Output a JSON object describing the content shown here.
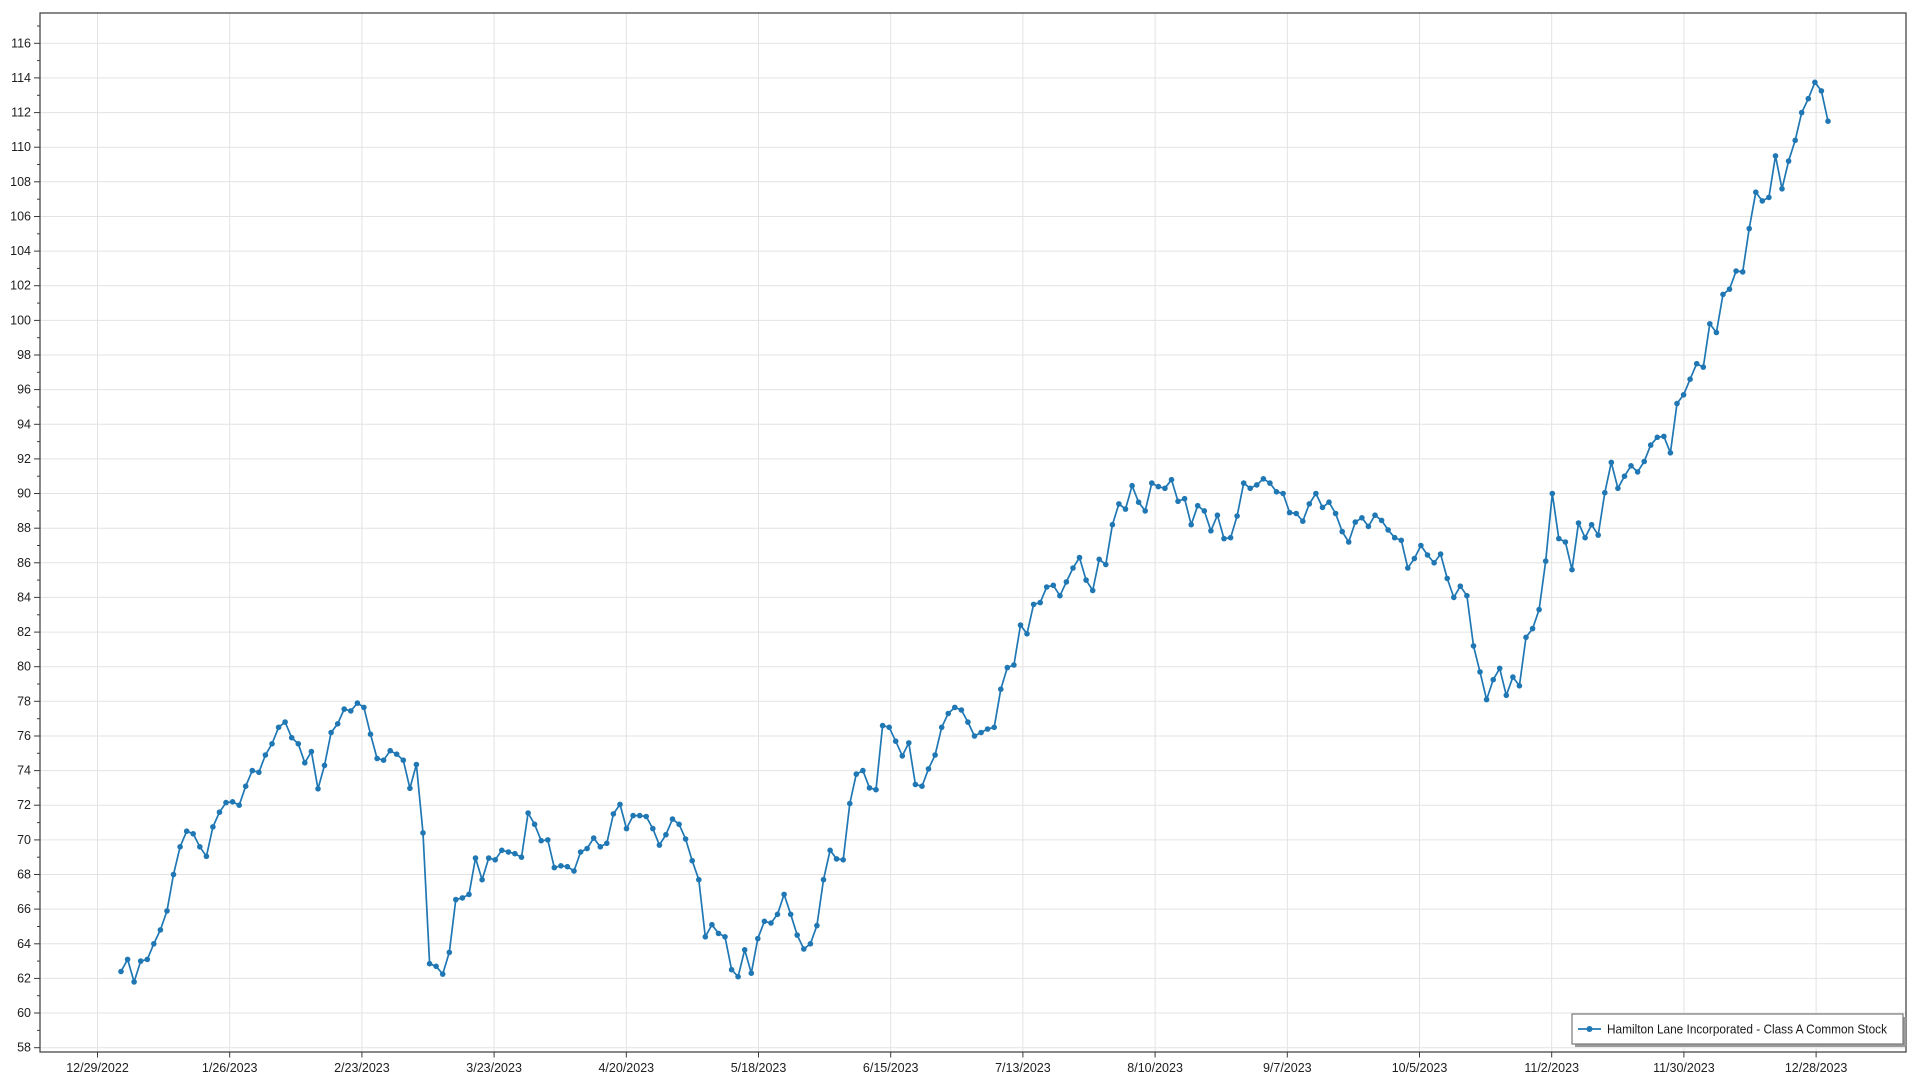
{
  "chart_data": {
    "type": "line",
    "title": "",
    "legend": {
      "position": "bottom-right",
      "label": "Hamilton Lane Incorporated - Class A Common Stock"
    },
    "x_tick_labels": [
      "12/29/2022",
      "1/26/2023",
      "2/23/2023",
      "3/23/2023",
      "4/20/2023",
      "5/18/2023",
      "6/15/2023",
      "7/13/2023",
      "8/10/2023",
      "9/7/2023",
      "10/5/2023",
      "11/2/2023",
      "11/30/2023",
      "12/28/2023"
    ],
    "y_axis": {
      "tick_min": 58,
      "tick_max": 116,
      "tick_step": 2,
      "minor_step": 1,
      "range_min": 57.75,
      "range_max": 117.75
    },
    "grid": {
      "show_x": true,
      "show_y": true,
      "color": "#e3e3e3"
    },
    "colors": {
      "axis": "#3a3a3a",
      "text": "#202020",
      "background": "#ffffff",
      "legend_border": "#7a7a7a",
      "legend_shadow": "#9a9a9a"
    },
    "series": [
      {
        "name": "Hamilton Lane Incorporated - Class A Common Stock",
        "color": "#1f77b4",
        "marker": "circle",
        "values": [
          62.4,
          63.1,
          61.8,
          63.0,
          63.1,
          64.0,
          64.8,
          65.9,
          68.0,
          69.6,
          70.5,
          70.35,
          69.6,
          69.05,
          70.75,
          71.6,
          72.15,
          72.2,
          72.0,
          73.1,
          74.0,
          73.9,
          74.9,
          75.55,
          76.5,
          76.8,
          75.9,
          75.55,
          74.45,
          75.1,
          72.95,
          74.3,
          76.2,
          76.7,
          77.55,
          77.45,
          77.9,
          77.65,
          76.1,
          74.7,
          74.6,
          75.15,
          74.95,
          74.6,
          72.98,
          74.35,
          70.4,
          62.85,
          62.7,
          62.25,
          63.5,
          66.55,
          66.65,
          66.85,
          68.95,
          67.7,
          68.95,
          68.85,
          69.4,
          69.3,
          69.2,
          69.0,
          71.55,
          70.9,
          69.95,
          70.0,
          68.4,
          68.5,
          68.45,
          68.2,
          69.3,
          69.5,
          70.1,
          69.6,
          69.8,
          71.5,
          72.05,
          70.65,
          71.4,
          71.4,
          71.35,
          70.65,
          69.7,
          70.3,
          71.2,
          70.9,
          70.05,
          68.8,
          67.7,
          64.4,
          65.1,
          64.6,
          64.4,
          62.5,
          62.1,
          63.65,
          62.3,
          64.3,
          65.3,
          65.2,
          65.7,
          66.85,
          65.7,
          64.5,
          63.7,
          64.0,
          65.05,
          67.7,
          69.4,
          68.9,
          68.85,
          72.1,
          73.8,
          74.0,
          73.0,
          72.9,
          76.6,
          76.5,
          75.7,
          74.85,
          75.6,
          73.2,
          73.1,
          74.1,
          74.9,
          76.5,
          77.3,
          77.65,
          77.5,
          76.8,
          76.0,
          76.2,
          76.4,
          76.5,
          78.7,
          79.95,
          80.1,
          82.4,
          81.9,
          83.6,
          83.7,
          84.6,
          84.7,
          84.1,
          84.9,
          85.7,
          86.3,
          85.0,
          84.4,
          86.2,
          85.9,
          88.2,
          89.4,
          89.1,
          90.45,
          89.5,
          89.0,
          90.6,
          90.4,
          90.3,
          90.8,
          89.55,
          89.7,
          88.2,
          89.3,
          89.0,
          87.85,
          88.75,
          87.4,
          87.45,
          88.7,
          90.6,
          90.3,
          90.5,
          90.85,
          90.6,
          90.1,
          90.0,
          88.9,
          88.85,
          88.4,
          89.4,
          90.0,
          89.2,
          89.5,
          88.85,
          87.8,
          87.2,
          88.35,
          88.6,
          88.1,
          88.75,
          88.45,
          87.9,
          87.45,
          87.3,
          85.7,
          86.25,
          87.0,
          86.45,
          86.0,
          86.5,
          85.1,
          84.0,
          84.65,
          84.1,
          81.2,
          79.7,
          78.1,
          79.25,
          79.9,
          78.35,
          79.4,
          78.9,
          81.7,
          82.2,
          83.3,
          86.1,
          90.0,
          87.4,
          87.2,
          85.6,
          88.3,
          87.45,
          88.2,
          87.6,
          90.05,
          91.8,
          90.3,
          91.0,
          91.6,
          91.25,
          91.85,
          92.8,
          93.25,
          93.3,
          92.35,
          95.2,
          95.7,
          96.6,
          97.5,
          97.3,
          99.8,
          99.3,
          101.5,
          101.8,
          102.85,
          102.8,
          105.3,
          107.4,
          106.9,
          107.1,
          109.5,
          107.6,
          109.2,
          110.4,
          112.0,
          112.8,
          113.75,
          113.25,
          111.5
        ]
      }
    ]
  }
}
